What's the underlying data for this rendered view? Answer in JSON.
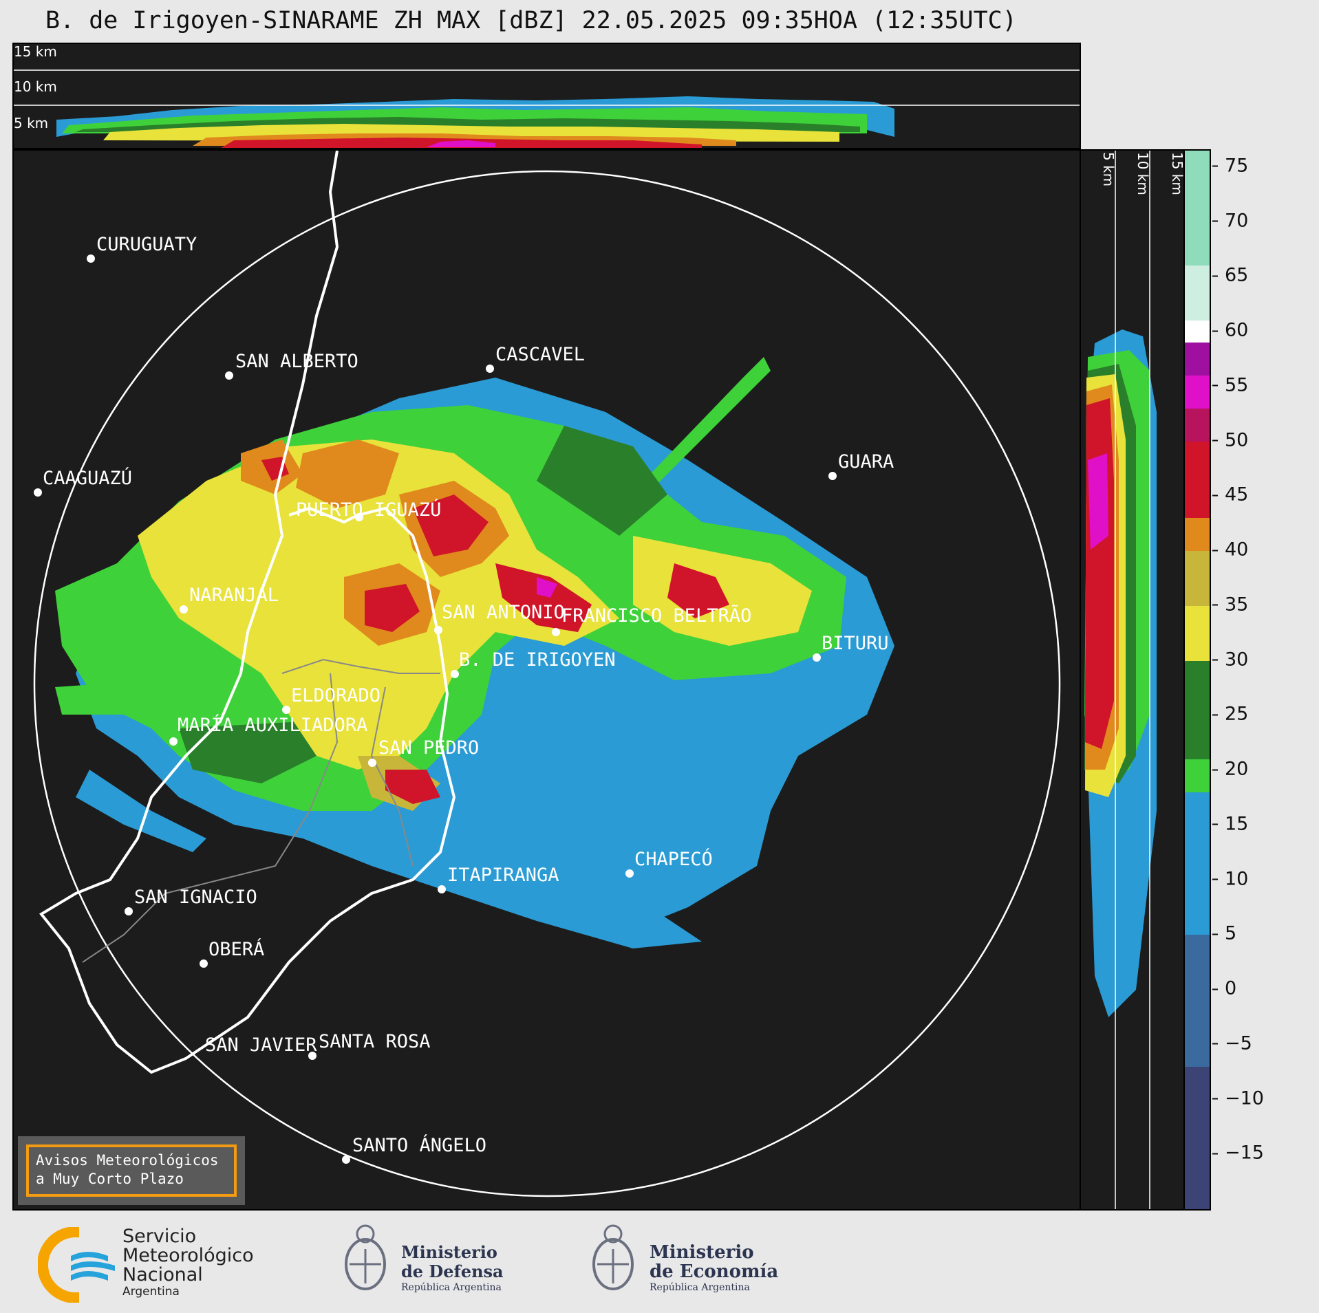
{
  "header": {
    "title": "B. de Irigoyen-SINARAME ZH MAX [dBZ] 22.05.2025 09:35HOA (12:35UTC)"
  },
  "top_profile": {
    "height_labels": [
      "15 km",
      "10 km",
      "5 km"
    ]
  },
  "side_profile": {
    "height_labels": [
      "5 km",
      "10 km",
      "15 km"
    ]
  },
  "colorbar": {
    "unit": "dBZ",
    "ticks": [
      "75",
      "70",
      "65",
      "60",
      "55",
      "50",
      "45",
      "40",
      "35",
      "30",
      "25",
      "20",
      "15",
      "10",
      "5",
      "0",
      "−5",
      "−10",
      "−15"
    ],
    "min": -20,
    "max": 76.5,
    "bands": [
      {
        "from": -20,
        "to": -7,
        "color": "#3c4475"
      },
      {
        "from": -7,
        "to": 5,
        "color": "#3a6a9e"
      },
      {
        "from": 5,
        "to": 18,
        "color": "#2a9bd4"
      },
      {
        "from": 18,
        "to": 21,
        "color": "#3fd13a"
      },
      {
        "from": 21,
        "to": 30,
        "color": "#2a7f2a"
      },
      {
        "from": 30,
        "to": 35,
        "color": "#e8e23a"
      },
      {
        "from": 35,
        "to": 40,
        "color": "#c8b63a"
      },
      {
        "from": 40,
        "to": 43,
        "color": "#e08a1e"
      },
      {
        "from": 43,
        "to": 50,
        "color": "#d0142a"
      },
      {
        "from": 50,
        "to": 53,
        "color": "#b8145e"
      },
      {
        "from": 53,
        "to": 56,
        "color": "#e010c8"
      },
      {
        "from": 56,
        "to": 59,
        "color": "#a010a0"
      },
      {
        "from": 59,
        "to": 61,
        "color": "#ffffff"
      },
      {
        "from": 61,
        "to": 66,
        "color": "#cdeee0"
      },
      {
        "from": 66,
        "to": 76.5,
        "color": "#8edcbb"
      }
    ]
  },
  "map": {
    "cities": [
      {
        "name": "CURUGUATY"
      },
      {
        "name": "SAN ALBERTO"
      },
      {
        "name": "CASCAVEL"
      },
      {
        "name": "CAAGUAZÚ"
      },
      {
        "name": "GUARA"
      },
      {
        "name": "PUERTO IGUAZÚ"
      },
      {
        "name": "NARANJAL"
      },
      {
        "name": "SAN ANTONIO"
      },
      {
        "name": "FRANCISCO BELTRÃO"
      },
      {
        "name": "BITURU"
      },
      {
        "name": "B. DE IRIGOYEN"
      },
      {
        "name": "ELDORADO"
      },
      {
        "name": "MARÍA AUXILIADORA"
      },
      {
        "name": "SAN PEDRO"
      },
      {
        "name": "CHAPECÓ"
      },
      {
        "name": "ITAPIRANGA"
      },
      {
        "name": "SAN IGNACIO"
      },
      {
        "name": "OBERÁ"
      },
      {
        "name": "SAN JAVIER"
      },
      {
        "name": "SANTA ROSA"
      },
      {
        "name": "SANTO ÁNGELO"
      }
    ]
  },
  "notice": {
    "line1": "Avisos Meteorológicos",
    "line2": "a Muy Corto Plazo"
  },
  "footer": {
    "smn_line1": "Servicio",
    "smn_line2": "Meteorológico",
    "smn_line3": "Nacional",
    "smn_line4": "Argentina",
    "defensa_line1": "Ministerio",
    "defensa_line2": "de Defensa",
    "defensa_line3": "República Argentina",
    "economia_line1": "Ministerio",
    "economia_line2": "de Economía",
    "economia_line3": "República Argentina"
  }
}
